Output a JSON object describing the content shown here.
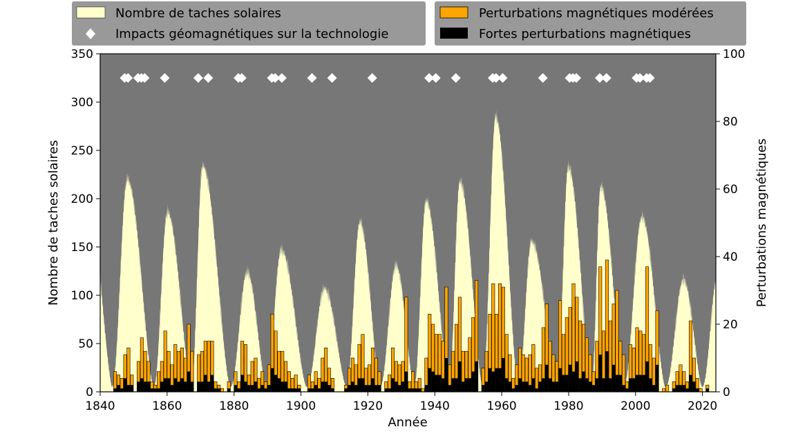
{
  "chart_data": {
    "type": "bar",
    "xlabel": "Année",
    "ylabel_left": "Nombre de taches solaires",
    "ylabel_right": "Perturbations magnétiques",
    "xlim": [
      1840,
      2024
    ],
    "ylim_left": [
      0,
      350
    ],
    "ylim_right": [
      0,
      100
    ],
    "x_ticks": [
      1840,
      1860,
      1880,
      1900,
      1920,
      1940,
      1960,
      1980,
      2000,
      2020
    ],
    "y_ticks_left": [
      0,
      50,
      100,
      150,
      200,
      250,
      300,
      350
    ],
    "y_ticks_right": [
      0,
      20,
      40,
      60,
      80,
      100
    ],
    "background_color": "#777777",
    "legend": {
      "sunspots": "Nombre de taches solaires",
      "impacts": "Impacts géomagnétiques sur la technologie",
      "moderate": "Perturbations magnétiques modérées",
      "strong": "Fortes perturbations magnétiques"
    },
    "colors": {
      "sunspots": "#ffffcc",
      "moderate": "#ffa500",
      "strong": "#000000",
      "impacts": "#ffffff",
      "legend_bg": "#999999"
    },
    "sunspot_cycles": [
      {
        "min_year": 1843.5,
        "max_year": 1848.1,
        "peak": 220
      },
      {
        "min_year": 1856.0,
        "max_year": 1860.1,
        "peak": 186
      },
      {
        "min_year": 1867.2,
        "max_year": 1870.6,
        "peak": 234
      },
      {
        "min_year": 1878.9,
        "max_year": 1883.9,
        "peak": 124
      },
      {
        "min_year": 1889.6,
        "max_year": 1894.1,
        "peak": 147
      },
      {
        "min_year": 1901.7,
        "max_year": 1907.0,
        "peak": 107
      },
      {
        "min_year": 1913.6,
        "max_year": 1917.6,
        "peak": 176
      },
      {
        "min_year": 1923.6,
        "max_year": 1928.4,
        "peak": 131
      },
      {
        "min_year": 1933.8,
        "max_year": 1937.4,
        "peak": 198
      },
      {
        "min_year": 1944.2,
        "max_year": 1947.5,
        "peak": 218
      },
      {
        "min_year": 1954.3,
        "max_year": 1958.2,
        "peak": 285
      },
      {
        "min_year": 1964.9,
        "max_year": 1968.9,
        "peak": 156
      },
      {
        "min_year": 1976.5,
        "max_year": 1979.9,
        "peak": 233
      },
      {
        "min_year": 1986.8,
        "max_year": 1989.6,
        "peak": 213
      },
      {
        "min_year": 1996.4,
        "max_year": 2001.9,
        "peak": 181
      },
      {
        "min_year": 2008.9,
        "max_year": 2014.3,
        "peak": 116
      },
      {
        "min_year": 2019.9,
        "max_year": 2024.5,
        "peak": 120
      }
    ],
    "sunspot_start": [
      1840,
      120
    ],
    "impacts_y": 325,
    "impacts_years": [
      1847,
      1848,
      1851,
      1852,
      1853,
      1859,
      1869,
      1872,
      1881,
      1882,
      1891,
      1892,
      1894,
      1903,
      1909,
      1921,
      1938,
      1940,
      1946,
      1957,
      1958,
      1960,
      1972,
      1980,
      1981,
      1982,
      1989,
      1991,
      2000,
      2001,
      2003,
      2004
    ],
    "disturbance_years": [
      1844,
      1845,
      1846,
      1847,
      1848,
      1849,
      1850,
      1851,
      1852,
      1853,
      1854,
      1855,
      1856,
      1857,
      1858,
      1859,
      1860,
      1861,
      1862,
      1863,
      1864,
      1865,
      1866,
      1867,
      1868,
      1869,
      1870,
      1871,
      1872,
      1873,
      1874,
      1875,
      1876,
      1877,
      1878,
      1879,
      1880,
      1881,
      1882,
      1883,
      1884,
      1885,
      1886,
      1887,
      1888,
      1889,
      1890,
      1891,
      1892,
      1893,
      1894,
      1895,
      1896,
      1897,
      1898,
      1899,
      1900,
      1901,
      1902,
      1903,
      1904,
      1905,
      1906,
      1907,
      1908,
      1909,
      1910,
      1911,
      1912,
      1913,
      1914,
      1915,
      1916,
      1917,
      1918,
      1919,
      1920,
      1921,
      1922,
      1923,
      1924,
      1925,
      1926,
      1927,
      1928,
      1929,
      1930,
      1931,
      1932,
      1933,
      1934,
      1935,
      1936,
      1937,
      1938,
      1939,
      1940,
      1941,
      1942,
      1943,
      1944,
      1945,
      1946,
      1947,
      1948,
      1949,
      1950,
      1951,
      1952,
      1953,
      1954,
      1955,
      1956,
      1957,
      1958,
      1959,
      1960,
      1961,
      1962,
      1963,
      1964,
      1965,
      1966,
      1967,
      1968,
      1969,
      1970,
      1971,
      1972,
      1973,
      1974,
      1975,
      1976,
      1977,
      1978,
      1979,
      1980,
      1981,
      1982,
      1983,
      1984,
      1985,
      1986,
      1987,
      1988,
      1989,
      1990,
      1991,
      1992,
      1993,
      1994,
      1995,
      1996,
      1997,
      1998,
      1999,
      2000,
      2001,
      2002,
      2003,
      2004,
      2005,
      2006,
      2007,
      2008,
      2009,
      2010,
      2011,
      2012,
      2013,
      2014,
      2015,
      2016,
      2017,
      2018,
      2019,
      2020,
      2021,
      2022
    ],
    "moderate_disturbances": [
      6,
      5,
      4,
      11,
      13,
      5,
      0,
      9,
      16,
      12,
      9,
      3,
      2,
      6,
      9,
      18,
      12,
      8,
      14,
      12,
      13,
      10,
      20,
      12,
      0,
      11,
      12,
      15,
      15,
      15,
      3,
      2,
      1,
      0,
      3,
      0,
      6,
      3,
      15,
      14,
      5,
      9,
      10,
      4,
      6,
      3,
      8,
      23,
      18,
      12,
      12,
      9,
      6,
      4,
      5,
      2,
      0,
      0,
      5,
      3,
      6,
      4,
      10,
      13,
      7,
      4,
      0,
      0,
      0,
      2,
      7,
      10,
      8,
      14,
      17,
      7,
      8,
      13,
      10,
      6,
      0,
      3,
      5,
      13,
      9,
      8,
      9,
      28,
      3,
      6,
      3,
      4,
      1,
      10,
      23,
      20,
      17,
      17,
      15,
      31,
      8,
      12,
      20,
      28,
      12,
      12,
      16,
      22,
      33,
      0,
      7,
      12,
      23,
      32,
      23,
      32,
      31,
      17,
      11,
      4,
      8,
      13,
      11,
      10,
      11,
      14,
      7,
      8,
      19,
      26,
      15,
      11,
      9,
      27,
      17,
      22,
      25,
      32,
      28,
      21,
      20,
      16,
      11,
      6,
      15,
      37,
      18,
      39,
      21,
      26,
      30,
      15,
      11,
      3,
      14,
      13,
      19,
      18,
      17,
      37,
      14,
      10,
      24,
      0,
      1,
      2,
      0,
      3,
      6,
      8,
      6,
      3,
      21,
      10,
      4,
      1,
      0,
      2,
      0
    ]
  }
}
